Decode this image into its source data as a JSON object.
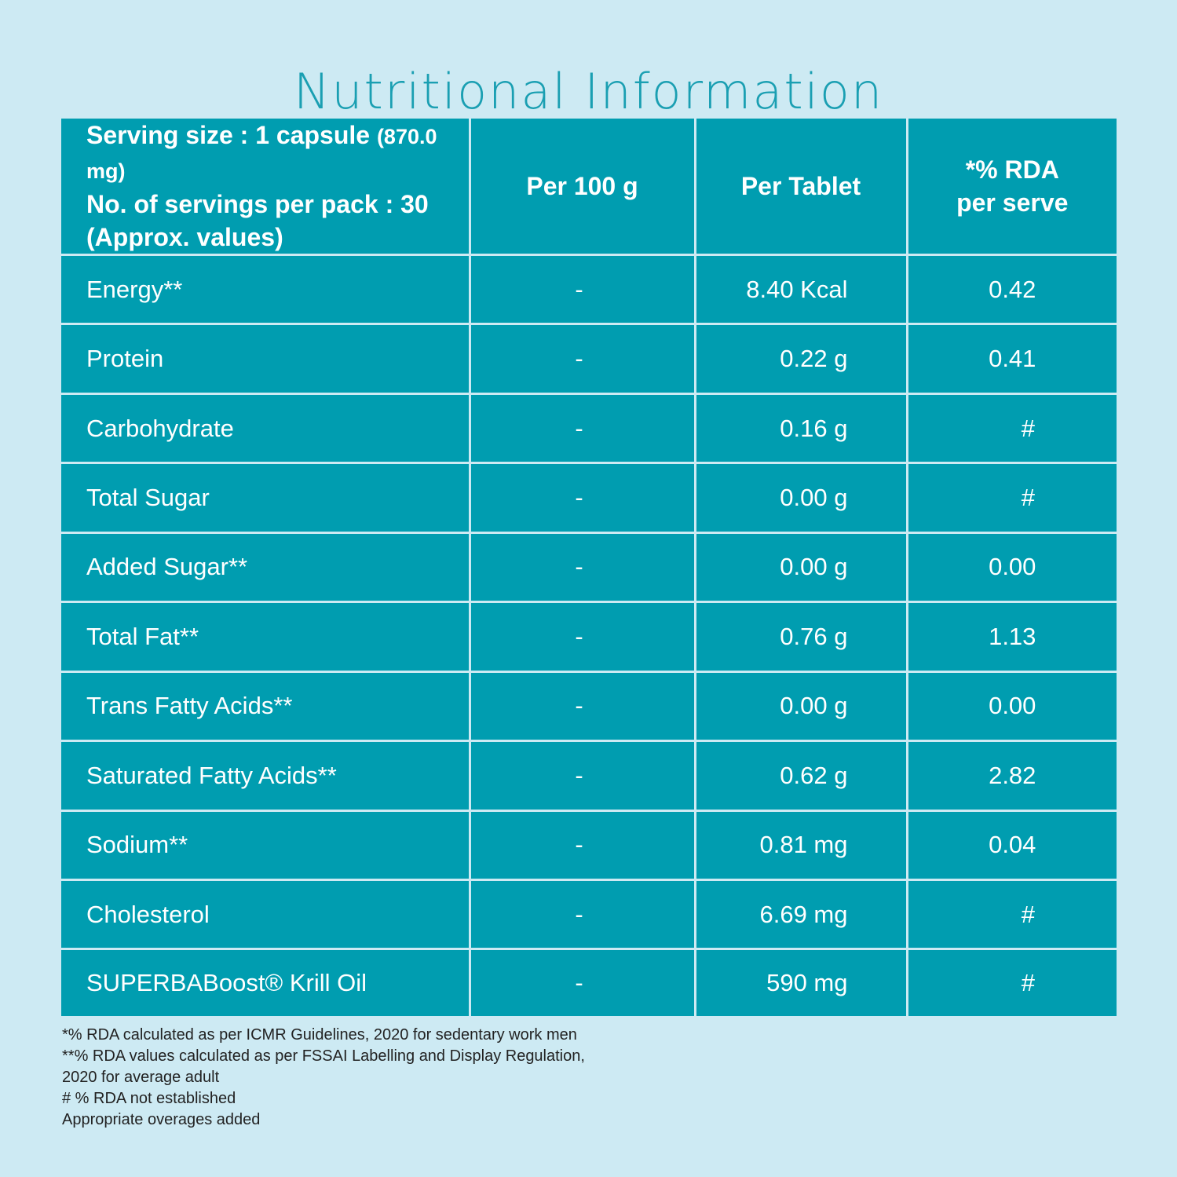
{
  "title": "Nutritional Information",
  "header": {
    "serving_size_label": "Serving size : 1 capsule",
    "serving_size_weight": "(870.0 mg)",
    "servings_per_pack": "No. of servings per pack : 30",
    "approx": "(Approx. values)",
    "col_per100": "Per 100 g",
    "col_pertablet": "Per Tablet",
    "col_rda_line1": "*% RDA",
    "col_rda_line2": "per serve"
  },
  "rows": [
    {
      "name": "Energy**",
      "per100": "-",
      "per_tablet": "8.40 Kcal",
      "rda": "0.42"
    },
    {
      "name": "Protein",
      "per100": "-",
      "per_tablet": "0.22 g",
      "rda": "0.41"
    },
    {
      "name": "Carbohydrate",
      "per100": "-",
      "per_tablet": "0.16 g",
      "rda": "#"
    },
    {
      "name": "Total Sugar",
      "per100": "-",
      "per_tablet": "0.00 g",
      "rda": "#"
    },
    {
      "name": "Added Sugar**",
      "per100": "-",
      "per_tablet": "0.00 g",
      "rda": "0.00"
    },
    {
      "name": "Total Fat**",
      "per100": "-",
      "per_tablet": "0.76 g",
      "rda": "1.13"
    },
    {
      "name": "Trans Fatty Acids**",
      "per100": "-",
      "per_tablet": "0.00 g",
      "rda": "0.00"
    },
    {
      "name": "Saturated Fatty Acids**",
      "per100": "-",
      "per_tablet": "0.62 g",
      "rda": "2.82"
    },
    {
      "name": "Sodium**",
      "per100": "-",
      "per_tablet": "0.81 mg",
      "rda": "0.04"
    },
    {
      "name": "Cholesterol",
      "per100": "-",
      "per_tablet": "6.69 mg",
      "rda": "#"
    },
    {
      "name": "SUPERBABoost® Krill Oil",
      "per100": "-",
      "per_tablet": "590 mg",
      "rda": "#"
    }
  ],
  "notes": [
    "*% RDA calculated as per ICMR Guidelines, 2020 for sedentary work men",
    "**% RDA values calculated as per FSSAI Labelling and Display Regulation,",
    "2020 for average adult",
    "# % RDA not established",
    "Appropriate overages added"
  ],
  "colors": {
    "background": "#cdeaf3",
    "table_fill": "#009db0",
    "title": "#1a9fb2"
  }
}
